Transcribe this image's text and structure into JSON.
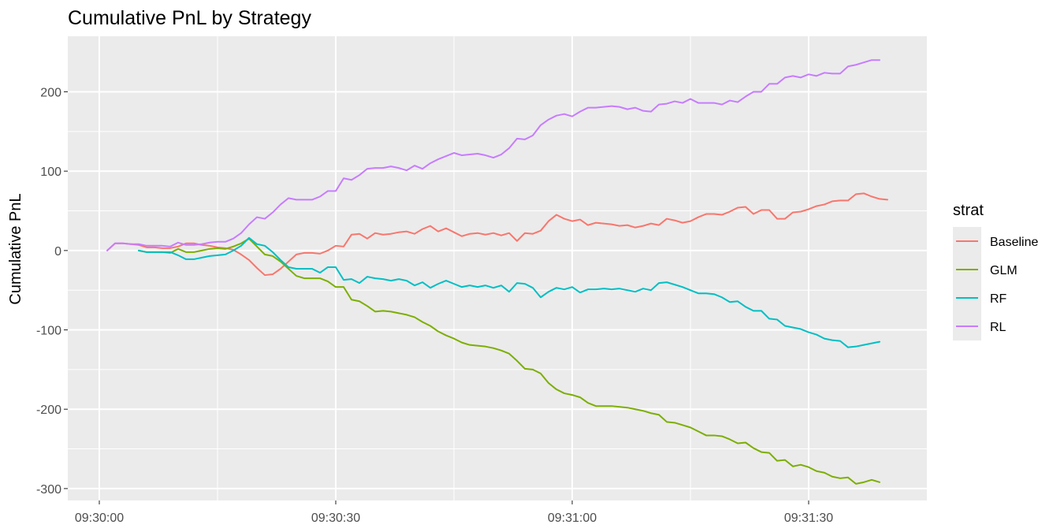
{
  "chart_data": {
    "type": "line",
    "title": "Cumulative PnL by Strategy",
    "xlabel": "",
    "ylabel": "Cumulative PnL",
    "x_start": "09:30:00",
    "x_ticks": [
      "09:30:00",
      "09:30:30",
      "09:31:00",
      "09:31:30"
    ],
    "xlim": [
      "09:29:56",
      "09:31:45"
    ],
    "y_ticks": [
      200,
      100,
      0,
      -100,
      -200,
      -300
    ],
    "ylim": [
      -315,
      270
    ],
    "grid": true,
    "legend": {
      "title": "strat",
      "position": "right"
    },
    "series": [
      {
        "name": "Baseline",
        "color": "#F8766D",
        "x_start": "09:30:01",
        "values": [
          0,
          9,
          9,
          8,
          7,
          4,
          4,
          3,
          3,
          5,
          9,
          9,
          7,
          6,
          4,
          3,
          1,
          -5,
          -12,
          -22,
          -31,
          -30,
          -23,
          -14,
          -5,
          -3,
          -3,
          -4,
          0,
          6,
          5,
          20,
          21,
          15,
          22,
          20,
          21,
          23,
          24,
          21,
          27,
          31,
          24,
          28,
          23,
          18,
          21,
          22,
          20,
          22,
          19,
          22,
          12,
          22,
          21,
          25,
          37,
          45,
          40,
          37,
          39,
          32,
          35,
          34,
          33,
          31,
          32,
          29,
          31,
          34,
          32,
          40,
          38,
          35,
          37,
          42,
          46,
          46,
          45,
          49,
          54,
          55,
          46,
          51,
          51,
          40,
          40,
          48,
          49,
          52,
          56,
          58,
          62,
          63,
          63,
          71,
          72,
          68,
          65,
          64
        ]
      },
      {
        "name": "GLM",
        "color": "#7CAE00",
        "x_start": "09:30:05",
        "values": [
          0,
          -2,
          -2,
          -2,
          -3,
          2,
          -2,
          -2,
          0,
          2,
          3,
          2,
          5,
          9,
          15,
          5,
          -5,
          -7,
          -14,
          -23,
          -32,
          -35,
          -35,
          -35,
          -39,
          -46,
          -46,
          -62,
          -64,
          -70,
          -77,
          -76,
          -77,
          -79,
          -81,
          -84,
          -90,
          -95,
          -102,
          -107,
          -111,
          -116,
          -119,
          -120,
          -121,
          -123,
          -126,
          -130,
          -139,
          -149,
          -150,
          -155,
          -167,
          -175,
          -180,
          -182,
          -185,
          -192,
          -196,
          -196,
          -196,
          -197,
          -198,
          -200,
          -202,
          -205,
          -207,
          -216,
          -217,
          -220,
          -223,
          -228,
          -233,
          -233,
          -234,
          -238,
          -243,
          -242,
          -249,
          -254,
          -255,
          -265,
          -264,
          -272,
          -270,
          -273,
          -278,
          -280,
          -285,
          -287,
          -286,
          -294,
          -292,
          -289,
          -292
        ]
      },
      {
        "name": "RF",
        "color": "#00BFC4",
        "x_start": "09:30:05",
        "values": [
          0,
          -2,
          -2,
          -2,
          -2,
          -6,
          -11,
          -11,
          -9,
          -7,
          -6,
          -5,
          0,
          6,
          16,
          8,
          6,
          -2,
          -12,
          -21,
          -23,
          -23,
          -23,
          -28,
          -21,
          -21,
          -37,
          -36,
          -41,
          -33,
          -35,
          -36,
          -38,
          -36,
          -38,
          -44,
          -40,
          -47,
          -42,
          -38,
          -42,
          -46,
          -44,
          -46,
          -44,
          -47,
          -44,
          -52,
          -41,
          -42,
          -47,
          -59,
          -52,
          -47,
          -49,
          -46,
          -53,
          -49,
          -49,
          -48,
          -49,
          -48,
          -50,
          -52,
          -48,
          -50,
          -41,
          -40,
          -43,
          -46,
          -50,
          -54,
          -54,
          -55,
          -59,
          -65,
          -64,
          -71,
          -76,
          -76,
          -86,
          -87,
          -95,
          -97,
          -99,
          -103,
          -106,
          -111,
          -113,
          -114,
          -122,
          -121,
          -119,
          -117,
          -115
        ]
      },
      {
        "name": "RL",
        "color": "#C77CFF",
        "x_start": "09:30:01",
        "values": [
          0,
          9,
          9,
          8,
          8,
          6,
          6,
          6,
          5,
          10,
          7,
          7,
          8,
          10,
          11,
          11,
          15,
          22,
          33,
          42,
          40,
          48,
          58,
          66,
          64,
          64,
          64,
          68,
          75,
          75,
          91,
          89,
          95,
          103,
          104,
          104,
          106,
          104,
          101,
          107,
          103,
          110,
          115,
          119,
          123,
          120,
          121,
          122,
          120,
          117,
          121,
          129,
          141,
          140,
          145,
          158,
          165,
          170,
          172,
          169,
          175,
          180,
          180,
          181,
          182,
          181,
          178,
          180,
          176,
          175,
          184,
          185,
          188,
          186,
          191,
          186,
          186,
          186,
          184,
          189,
          187,
          194,
          200,
          200,
          210,
          210,
          218,
          220,
          218,
          222,
          220,
          224,
          223,
          223,
          232,
          234,
          237,
          240,
          240
        ]
      }
    ]
  }
}
